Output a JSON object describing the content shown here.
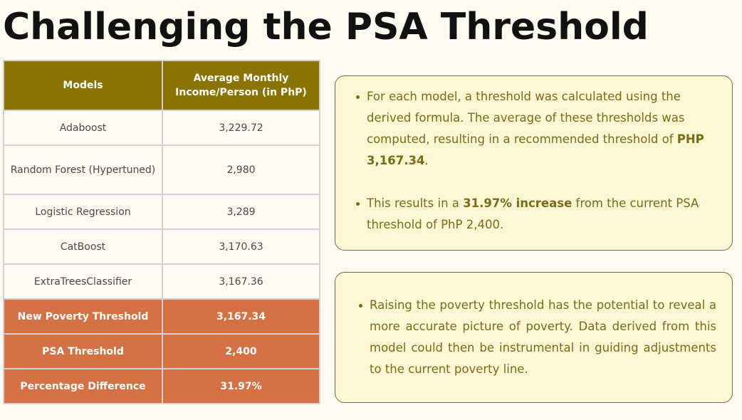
{
  "title": "Challenging the PSA Threshold",
  "table": {
    "headers": [
      "Models",
      "Average Monthly Income/Person (in PhP)"
    ],
    "rows": [
      {
        "model": "Adaboost",
        "value": "3,229.72"
      },
      {
        "model": "Random Forest (Hypertuned)",
        "value": "2,980"
      },
      {
        "model": "Logistic Regression",
        "value": "3,289"
      },
      {
        "model": "CatBoost",
        "value": "3,170.63"
      },
      {
        "model": "ExtraTreesClassifier",
        "value": "3,167.36"
      }
    ],
    "summary": [
      {
        "label": "New Poverty Threshold",
        "value": "3,167.34"
      },
      {
        "label": "PSA Threshold",
        "value": "2,400"
      },
      {
        "label": "Percentage Difference",
        "value": "31.97%"
      }
    ]
  },
  "card1": {
    "b1_pre": "For each model, a threshold was calculated using the derived formula. The average of these thresholds was computed, resulting in a recommended threshold of ",
    "b1_bold": "PHP 3,167.34",
    "b1_post": ".",
    "b2_pre": "This results in a ",
    "b2_bold": "31.97% increase",
    "b2_post": " from the current PSA threshold of PhP 2,400."
  },
  "card2": {
    "b1": "Raising the poverty threshold has the potential to reveal a more accurate picture of poverty. Data derived from this model could then be instrumental in guiding adjustments to the current poverty line."
  },
  "colors": {
    "header_bg": "#8a7300",
    "summary_bg": "#d47245",
    "card_bg": "#fef7d4",
    "card_text": "#7a6a1a"
  }
}
